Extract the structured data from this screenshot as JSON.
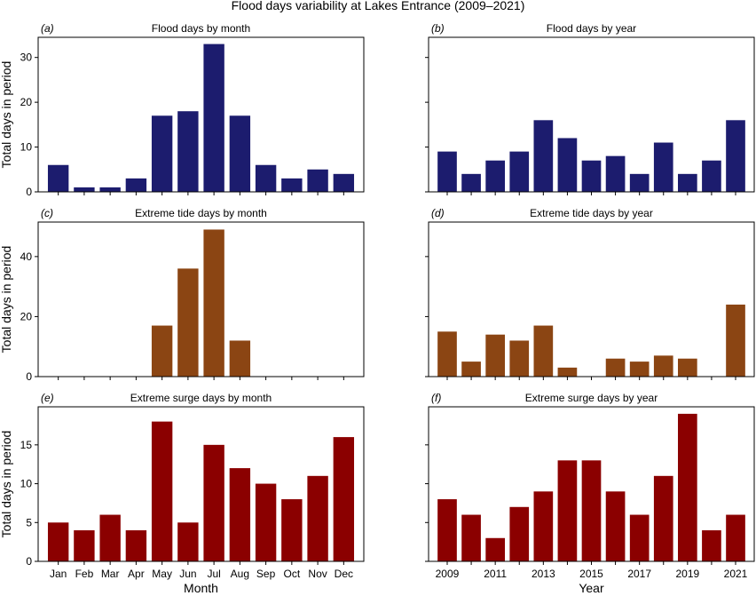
{
  "figure_title": "Flood days variability at Lakes Entrance (2009–2021)",
  "colors": {
    "flood": "#1c1c6e",
    "tide": "#8b4513",
    "surge": "#8b0000"
  },
  "shared_labels": {
    "ylabel": "Total days in period",
    "xlabel_month": "Month",
    "xlabel_year": "Year"
  },
  "chart_data": [
    {
      "id": "a",
      "panel_label": "(a)",
      "title": "Flood days by month",
      "type": "bar",
      "categories": [
        "Jan",
        "Feb",
        "Mar",
        "Apr",
        "May",
        "Jun",
        "Jul",
        "Aug",
        "Sep",
        "Oct",
        "Nov",
        "Dec"
      ],
      "values": [
        6,
        1,
        1,
        3,
        17,
        18,
        33,
        17,
        6,
        3,
        5,
        4
      ],
      "ylim": [
        0,
        34.5
      ],
      "yticks": [
        0,
        10,
        20,
        30
      ],
      "color_key": "flood",
      "xtick_labels": [],
      "ylabel": "Total days in period",
      "xlabel": ""
    },
    {
      "id": "b",
      "panel_label": "(b)",
      "title": "Flood days by year",
      "type": "bar",
      "categories": [
        "2009",
        "2010",
        "2011",
        "2012",
        "2013",
        "2014",
        "2015",
        "2016",
        "2017",
        "2018",
        "2019",
        "2020",
        "2021"
      ],
      "values": [
        9,
        4,
        7,
        9,
        16,
        12,
        7,
        8,
        4,
        11,
        4,
        7,
        16
      ],
      "ylim": [
        0,
        34.5
      ],
      "yticks": [],
      "color_key": "flood",
      "xtick_labels": [],
      "ylabel": "",
      "xlabel": ""
    },
    {
      "id": "c",
      "panel_label": "(c)",
      "title": "Extreme tide days by month",
      "type": "bar",
      "categories": [
        "Jan",
        "Feb",
        "Mar",
        "Apr",
        "May",
        "Jun",
        "Jul",
        "Aug",
        "Sep",
        "Oct",
        "Nov",
        "Dec"
      ],
      "values": [
        0,
        0,
        0,
        0,
        17,
        36,
        49,
        12,
        0,
        0,
        0,
        0
      ],
      "ylim": [
        0,
        51.5
      ],
      "yticks": [
        0,
        20,
        40
      ],
      "color_key": "tide",
      "xtick_labels": [],
      "ylabel": "Total days in period",
      "xlabel": ""
    },
    {
      "id": "d",
      "panel_label": "(d)",
      "title": "Extreme tide days by year",
      "type": "bar",
      "categories": [
        "2009",
        "2010",
        "2011",
        "2012",
        "2013",
        "2014",
        "2015",
        "2016",
        "2017",
        "2018",
        "2019",
        "2020",
        "2021"
      ],
      "values": [
        15,
        5,
        14,
        12,
        17,
        3,
        0,
        6,
        5,
        7,
        6,
        0,
        24
      ],
      "ylim": [
        0,
        51.5
      ],
      "yticks": [],
      "color_key": "tide",
      "xtick_labels": [],
      "ylabel": "",
      "xlabel": ""
    },
    {
      "id": "e",
      "panel_label": "(e)",
      "title": "Extreme surge days by month",
      "type": "bar",
      "categories": [
        "Jan",
        "Feb",
        "Mar",
        "Apr",
        "May",
        "Jun",
        "Jul",
        "Aug",
        "Sep",
        "Oct",
        "Nov",
        "Dec"
      ],
      "values": [
        5,
        4,
        6,
        4,
        18,
        5,
        15,
        12,
        10,
        8,
        11,
        16
      ],
      "ylim": [
        0,
        19.9
      ],
      "yticks": [
        0,
        5,
        10,
        15
      ],
      "color_key": "surge",
      "xtick_labels": [
        "Jan",
        "Feb",
        "Mar",
        "Apr",
        "May",
        "Jun",
        "Jul",
        "Aug",
        "Sep",
        "Oct",
        "Nov",
        "Dec"
      ],
      "ylabel": "Total days in period",
      "xlabel": "Month"
    },
    {
      "id": "f",
      "panel_label": "(f)",
      "title": "Extreme surge days by year",
      "type": "bar",
      "categories": [
        "2009",
        "2010",
        "2011",
        "2012",
        "2013",
        "2014",
        "2015",
        "2016",
        "2017",
        "2018",
        "2019",
        "2020",
        "2021"
      ],
      "values": [
        8,
        6,
        3,
        7,
        9,
        13,
        13,
        9,
        6,
        11,
        19,
        4,
        6
      ],
      "ylim": [
        0,
        19.9
      ],
      "yticks": [],
      "color_key": "surge",
      "xtick_labels": [
        "2009",
        "",
        "2011",
        "",
        "2013",
        "",
        "2015",
        "",
        "2017",
        "",
        "2019",
        "",
        "2021"
      ],
      "ylabel": "",
      "xlabel": "Year"
    }
  ]
}
